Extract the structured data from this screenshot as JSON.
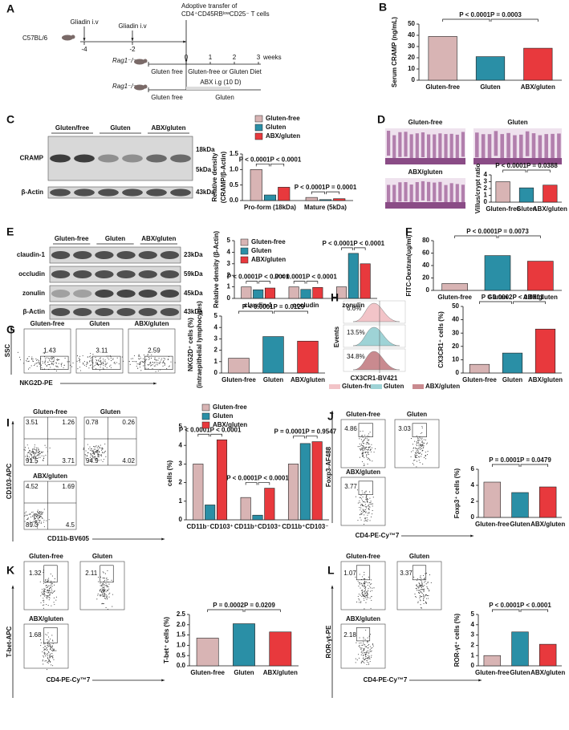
{
  "timeline": {
    "label": "A",
    "strain": "C57BL/6",
    "injections": [
      {
        "text": "Gliadin i.v",
        "time": -4
      },
      {
        "text": "Gliadin i.v",
        "time": -2
      }
    ],
    "transfer": [
      "Adoptive transfer of",
      "CD4⁺CD45RBˡᵒʷCD25⁻ T cells"
    ],
    "mouse": "Rag1⁻/⁻",
    "weeks": [
      0,
      1,
      2,
      3
    ],
    "unit": "weeks",
    "arms": [
      {
        "pre": "Gluten free",
        "diet": "Gluten-free or Gluten Diet"
      },
      {
        "pre": "Gluten free",
        "treatment": "ABX i.g (10 D)",
        "diet": "Gluten"
      }
    ]
  },
  "panels": {
    "C": {
      "groups": [
        "Gluten/free",
        "Gluten",
        "ABX/gluten"
      ],
      "rows": [
        {
          "name": "CRAMP",
          "sizes": [
            "18kDa",
            "5kDa"
          ]
        },
        {
          "name": "β-Actin",
          "sizes": [
            "43kDa"
          ]
        }
      ]
    },
    "D": {
      "images": [
        "Gluten-free",
        "Gluten",
        "ABX/gluten"
      ]
    },
    "E": {
      "groups": [
        "Gluten-free",
        "Gluten",
        "ABX/gluten"
      ],
      "rows": [
        {
          "name": "claudin-1",
          "sizes": [
            "23kDa"
          ]
        },
        {
          "name": "occludin",
          "sizes": [
            "59kDa"
          ]
        },
        {
          "name": "zonulin",
          "sizes": [
            "45kDa"
          ]
        },
        {
          "name": "β-Actin",
          "sizes": [
            "43kDa"
          ]
        }
      ]
    },
    "G": {
      "ylabel": "SSC",
      "xlabel": "NKG2D-PE",
      "plots": [
        {
          "title": "Gluten-free",
          "values": [
            1.43
          ]
        },
        {
          "title": "Gluten",
          "values": [
            3.11
          ]
        },
        {
          "title": "ABX/gluten",
          "values": [
            2.59
          ]
        }
      ]
    },
    "H": {
      "ylabel": "Events",
      "xlabel": "CX3CR1-BV421",
      "gates": [
        "6.6%",
        "13.5%",
        "34.8%"
      ],
      "legend": [
        {
          "name": "Gluten-free",
          "color": "#f2c4c8"
        },
        {
          "name": "Gluten",
          "color": "#9ed3d6"
        },
        {
          "name": "ABX/gluten",
          "color": "#c98a8f"
        }
      ]
    },
    "I": {
      "ylabel": "CD103-APC",
      "xlabel": "CD11b-BV605",
      "quadrant": true,
      "plots": [
        {
          "title": "Gluten-free",
          "values": [
            3.51,
            1.26,
            91.5,
            3.71
          ]
        },
        {
          "title": "Gluten",
          "values": [
            0.78,
            0.26,
            94.9,
            4.02
          ]
        },
        {
          "title": "ABX/gluten",
          "values": [
            4.52,
            1.69,
            89.3,
            4.5
          ]
        }
      ]
    },
    "J": {
      "ylabel": "Foxp3-AF488",
      "xlabel": "CD4-PE-Cy™7",
      "plots": [
        {
          "title": "Gluten-free",
          "values": [
            4.86
          ]
        },
        {
          "title": "Gluten",
          "values": [
            3.03
          ]
        },
        {
          "title": "ABX/gluten",
          "values": [
            3.77
          ]
        }
      ]
    },
    "K": {
      "ylabel": "T-bet-APC",
      "xlabel": "CD4-PE-Cy™7",
      "plots": [
        {
          "title": "Gluten-free",
          "values": [
            1.32
          ]
        },
        {
          "title": "Gluten",
          "values": [
            2.11
          ]
        },
        {
          "title": "ABX/gluten",
          "values": [
            1.68
          ]
        }
      ]
    },
    "L": {
      "ylabel": "ROR-γt-PE",
      "xlabel": "CD4-PE-Cy™7",
      "plots": [
        {
          "title": "Gluten-free",
          "values": [
            1.07
          ]
        },
        {
          "title": "Gluten",
          "values": [
            3.37
          ]
        },
        {
          "title": "ABX/gluten",
          "values": [
            2.18
          ]
        }
      ]
    }
  },
  "chart_data": [
    {
      "type": "bar",
      "label": "B",
      "ylabel": [
        "Serum CRAMP (ng/mL)"
      ],
      "categories": [
        "Gluten-free",
        "Gluten",
        "ABX/gluten"
      ],
      "values": [
        39,
        21,
        28.5
      ],
      "colors": [
        "#d8b4b4",
        "#2a8fa6",
        "#e8393d"
      ],
      "ylim": [
        0,
        50
      ],
      "yticks": [
        0,
        10,
        20,
        30,
        40,
        50
      ],
      "annotations": [
        "P < 0.0001",
        "P = 0.0003"
      ]
    },
    {
      "type": "bar",
      "label": "C",
      "ylabel": [
        "Relative density",
        "(CRAMP/β-Actin)"
      ],
      "categories": [
        "Pro-form (18kDa)",
        "Mature (5kDa)"
      ],
      "series": [
        {
          "name": "Gluten-free",
          "color": "#d8b4b4",
          "values": [
            1.0,
            0.1
          ]
        },
        {
          "name": "Gluten",
          "color": "#2a8fa6",
          "values": [
            0.18,
            0.03
          ]
        },
        {
          "name": "ABX/gluten",
          "color": "#e8393d",
          "values": [
            0.43,
            0.06
          ]
        }
      ],
      "ylim": [
        0,
        1.5
      ],
      "yticks": [
        {
          "value": 0,
          "label": "0.0"
        },
        0.5,
        {
          "value": 1,
          "label": "1.0"
        },
        1.5
      ],
      "annotations": [
        "P < 0.0001",
        "P < 0.0001",
        "P < 0.0001",
        "P = 0.0001"
      ]
    },
    {
      "type": "bar",
      "label": "D",
      "ylabel": [
        "Villus/crypt ratio"
      ],
      "categories": [
        "Gluten-free",
        "Gluten",
        "ABX/gluten"
      ],
      "values": [
        3.0,
        2.1,
        2.5
      ],
      "colors": [
        "#d8b4b4",
        "#2a8fa6",
        "#e8393d"
      ],
      "ylim": [
        0,
        4
      ],
      "yticks": [
        0,
        1,
        2,
        3,
        4
      ],
      "annotations": [
        "P < 0.0001",
        "P = 0.0388"
      ]
    },
    {
      "type": "bar",
      "label": "E",
      "ylabel": [
        "Relative density (β-Actin)"
      ],
      "categories": [
        "claudin-1",
        "occludin",
        "zonulin"
      ],
      "series": [
        {
          "name": "Gluten-free",
          "color": "#d8b4b4",
          "values": [
            1.0,
            1.0,
            1.0
          ]
        },
        {
          "name": "Gluten",
          "color": "#2a8fa6",
          "values": [
            0.75,
            0.78,
            3.9
          ]
        },
        {
          "name": "ABX/gluten",
          "color": "#e8393d",
          "values": [
            0.9,
            0.95,
            3.0
          ]
        }
      ],
      "ylim": [
        0,
        5
      ],
      "yticks": [
        0,
        1,
        2,
        3,
        4,
        5
      ],
      "annotations": [
        "P < 0.0001",
        "P < 0.0001",
        "P = 0.0001",
        "P < 0.0001",
        "P < 0.0001",
        "P < 0.0001"
      ]
    },
    {
      "type": "bar",
      "label": "F",
      "ylabel": [
        "FITC-Dextran(ug/ml)"
      ],
      "categories": [
        "Gluten-free",
        "Gluten",
        "ABX/gluten"
      ],
      "values": [
        11,
        56,
        47
      ],
      "colors": [
        "#d8b4b4",
        "#2a8fa6",
        "#e8393d"
      ],
      "ylim": [
        0,
        80
      ],
      "yticks": [
        0,
        20,
        40,
        60,
        80
      ],
      "annotations": [
        "P < 0.0001",
        "P = 0.0073"
      ]
    },
    {
      "type": "bar",
      "label": "G",
      "ylabel": [
        "NKG2D⁺ cells (%)",
        "(intraepithelial lymphocytes)"
      ],
      "categories": [
        "Gluten-free",
        "Gluten",
        "ABX/gluten"
      ],
      "values": [
        1.3,
        3.2,
        2.8
      ],
      "colors": [
        "#d8b4b4",
        "#2a8fa6",
        "#e8393d"
      ],
      "ylim": [
        0,
        5
      ],
      "yticks": [
        0,
        1,
        2,
        3,
        4,
        5
      ],
      "annotations": [
        "P < 0.0001",
        "P = 0.0129"
      ]
    },
    {
      "type": "bar",
      "label": "H",
      "ylabel": [
        "CX3CR1⁺ cells (%)"
      ],
      "categories": [
        "Gluten-free",
        "Gluten",
        "ABX/gluten"
      ],
      "values": [
        6.5,
        15,
        33
      ],
      "colors": [
        "#d8b4b4",
        "#2a8fa6",
        "#e8393d"
      ],
      "ylim": [
        0,
        50
      ],
      "yticks": [
        0,
        10,
        20,
        30,
        40,
        50
      ],
      "annotations": [
        "P = 0.0002",
        "P < 0.0001"
      ]
    },
    {
      "type": "bar",
      "label": "I",
      "ylabel": [
        "cells (%)"
      ],
      "categories": [
        "CD11b⁻CD103⁺",
        "CD11b⁺CD103⁺",
        "CD11b⁺CD103⁻"
      ],
      "series": [
        {
          "name": "Gluten-free",
          "color": "#d8b4b4",
          "values": [
            3.0,
            1.2,
            3.0
          ]
        },
        {
          "name": "Gluten",
          "color": "#2a8fa6",
          "values": [
            0.8,
            0.25,
            4.1
          ]
        },
        {
          "name": "ABX/gluten",
          "color": "#e8393d",
          "values": [
            4.3,
            1.7,
            4.2
          ]
        }
      ],
      "ylim": [
        0,
        5
      ],
      "yticks": [
        0,
        1,
        2,
        3,
        4,
        5
      ],
      "annotations": [
        "P < 0.0001",
        "P < 0.0001",
        "P < 0.0001",
        "P < 0.0001",
        "P = 0.0001",
        "P = 0.9547"
      ]
    },
    {
      "type": "bar",
      "label": "J",
      "ylabel": [
        "Foxp3⁺ cells (%)"
      ],
      "categories": [
        "Gluten-free",
        "Gluten",
        "ABX/gluten"
      ],
      "values": [
        4.4,
        3.1,
        3.8
      ],
      "colors": [
        "#d8b4b4",
        "#2a8fa6",
        "#e8393d"
      ],
      "ylim": [
        0,
        6
      ],
      "yticks": [
        0,
        2,
        4,
        6
      ],
      "annotations": [
        "P = 0.0001",
        "P = 0.0479"
      ]
    },
    {
      "type": "bar",
      "label": "K",
      "ylabel": [
        "T-bet⁺ cells (%)"
      ],
      "categories": [
        "Gluten-free",
        "Gluten",
        "ABX/gluten"
      ],
      "values": [
        1.35,
        2.05,
        1.65
      ],
      "colors": [
        "#d8b4b4",
        "#2a8fa6",
        "#e8393d"
      ],
      "ylim": [
        0,
        2.5
      ],
      "yticks": [
        {
          "value": 0,
          "label": "0.0"
        },
        0.5,
        {
          "value": 1,
          "label": "1.0"
        },
        1.5,
        {
          "value": 2,
          "label": "2.0"
        },
        2.5
      ],
      "annotations": [
        "P = 0.0002",
        "P = 0.0209"
      ]
    },
    {
      "type": "bar",
      "label": "L",
      "ylabel": [
        "ROR-γt⁺ cells (%)"
      ],
      "categories": [
        "Gluten-free",
        "Gluten",
        "ABX/gluten"
      ],
      "values": [
        1.0,
        3.3,
        2.1
      ],
      "colors": [
        "#d8b4b4",
        "#2a8fa6",
        "#e8393d"
      ],
      "ylim": [
        0,
        5
      ],
      "yticks": [
        0,
        1,
        2,
        3,
        4,
        5
      ],
      "annotations": [
        "P < 0.0001",
        "P < 0.0001"
      ]
    }
  ]
}
